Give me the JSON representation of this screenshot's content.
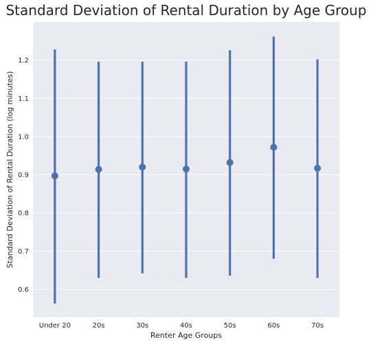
{
  "chart_data": {
    "type": "point",
    "title": "Standard Deviation of Rental Duration by Age Group",
    "xlabel": "Renter Age Groups",
    "ylabel": "Standard Deviation of Rental Duration (log minutes)",
    "categories": [
      "Under 20",
      "20s",
      "30s",
      "40s",
      "50s",
      "60s",
      "70s"
    ],
    "values": [
      0.897,
      0.914,
      0.92,
      0.915,
      0.932,
      0.972,
      0.917
    ],
    "ci_low": [
      0.563,
      0.63,
      0.642,
      0.63,
      0.636,
      0.68,
      0.63
    ],
    "ci_high": [
      1.228,
      1.196,
      1.196,
      1.196,
      1.226,
      1.262,
      1.202
    ],
    "ylim": [
      0.527,
      1.3
    ],
    "yticks": [
      0.6,
      0.7,
      0.8,
      0.9,
      1.0,
      1.1,
      1.2
    ],
    "yticklabels": [
      "0.6",
      "0.7",
      "0.8",
      "0.9",
      "1.0",
      "1.1",
      "1.2"
    ],
    "grid": true,
    "background": "#eaeaf2",
    "series_color": "#4c72b0"
  }
}
